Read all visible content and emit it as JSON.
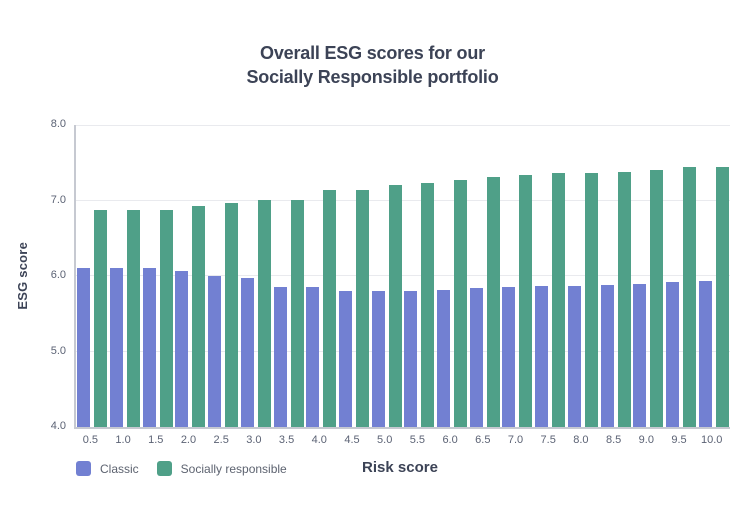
{
  "chart_data": {
    "type": "bar",
    "title": "Overall ESG scores for our Socially Responsible portfolio",
    "title_lines": [
      "Overall ESG scores for our",
      "Socially Responsible portfolio"
    ],
    "xlabel": "Risk score",
    "ylabel": "ESG score",
    "ylim": [
      4.0,
      8.0
    ],
    "yticks": [
      8.0,
      7.0,
      6.0,
      5.0,
      4.0
    ],
    "grid": true,
    "legend_position": "bottom-left",
    "categories": [
      "0.5",
      "1.0",
      "1.5",
      "2.0",
      "2.5",
      "3.0",
      "3.5",
      "4.0",
      "4.5",
      "5.0",
      "5.5",
      "6.0",
      "6.5",
      "7.0",
      "7.5",
      "8.0",
      "8.5",
      "9.0",
      "9.5",
      "10.0"
    ],
    "series": [
      {
        "name": "Classic",
        "color": "#7280d2",
        "values": [
          6.1,
          6.1,
          6.1,
          6.06,
          6.0,
          5.97,
          5.86,
          5.86,
          5.8,
          5.8,
          5.8,
          5.81,
          5.84,
          5.86,
          5.87,
          5.87,
          5.88,
          5.89,
          5.92,
          5.93
        ]
      },
      {
        "name": "Socially responsible",
        "color": "#4fa088",
        "values": [
          6.87,
          6.87,
          6.87,
          6.93,
          6.97,
          7.0,
          7.0,
          7.14,
          7.14,
          7.2,
          7.23,
          7.27,
          7.31,
          7.34,
          7.36,
          7.36,
          7.38,
          7.4,
          7.45,
          7.45
        ]
      }
    ]
  },
  "theme": {
    "title_color": "#3c4356",
    "tick_color": "#5b6274",
    "legend_text_color": "#5d6370",
    "gridline_color": "#e9eaee",
    "axis_line_color": "#c6c9d1",
    "background": "#ffffff"
  }
}
